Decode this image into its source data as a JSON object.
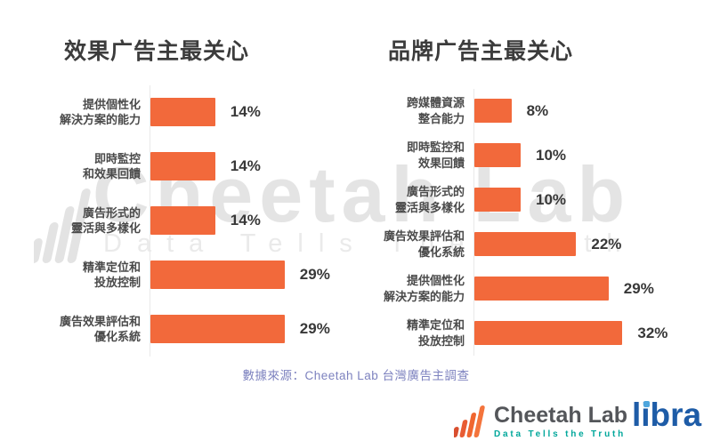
{
  "watermark": {
    "brand": "Cheetah Lab",
    "tagline": "Data Tells The Truth",
    "icon": "bar-chart-icon",
    "color": "#e4e4e4"
  },
  "source_note": "數據來源：Cheetah Lab 台灣廣告主調查",
  "footer": {
    "cheetah": {
      "brand": "Cheetah Lab",
      "tagline": "Data Tells the Truth",
      "icon": "bar-chart-icon",
      "brand_color": "#54565a",
      "tagline_color": "#00a79b"
    },
    "libra": {
      "brand": "libra",
      "color": "#1e5ca7"
    }
  },
  "colors": {
    "bar": "#F2693B",
    "title_text": "#3c3c3c",
    "label_text": "#4a4a4a",
    "value_text": "#383838",
    "source_text": "#7d82bf"
  },
  "chart_data": [
    {
      "type": "bar",
      "orientation": "horizontal",
      "title": "效果广告主最关心",
      "categories": [
        "提供個性化\n解決方案的能力",
        "即時監控\n和效果回饋",
        "廣告形式的\n靈活與多樣化",
        "精準定位和\n投放控制",
        "廣告效果評估和\n優化系統"
      ],
      "values": [
        14,
        14,
        14,
        29,
        29
      ],
      "value_labels": [
        "14%",
        "14%",
        "14%",
        "29%",
        "29%"
      ],
      "unit": "%",
      "bar_color": "#F2693B",
      "xlim": [
        0,
        35
      ],
      "grid": false,
      "legend": "none"
    },
    {
      "type": "bar",
      "orientation": "horizontal",
      "title": "品牌广告主最关心",
      "categories": [
        "跨媒體資源\n整合能力",
        "即時監控和\n效果回饋",
        "廣告形式的\n靈活與多樣化",
        "廣告效果評估和\n優化系統",
        "提供個性化\n解決方案的能力",
        "精準定位和\n投放控制"
      ],
      "values": [
        8,
        10,
        10,
        22,
        29,
        32
      ],
      "value_labels": [
        "8%",
        "10%",
        "10%",
        "22%",
        "29%",
        "32%"
      ],
      "unit": "%",
      "bar_color": "#F2693B",
      "xlim": [
        0,
        35
      ],
      "grid": false,
      "legend": "none"
    }
  ]
}
